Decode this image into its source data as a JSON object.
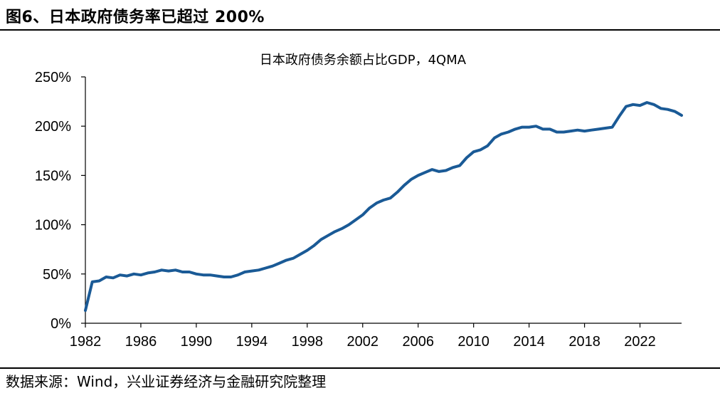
{
  "figure": {
    "title": "图6、日本政府债务率已超过 200%",
    "source": "数据来源：Wind，兴业证券经济与金融研究院整理"
  },
  "colors": {
    "line": "#1a5a96",
    "axis": "#000000"
  },
  "chart_data": {
    "type": "line",
    "title": "日本政府债务余额占比GDP，4QMA",
    "xlabel": "",
    "ylabel": "",
    "xlim": [
      1982,
      2025
    ],
    "ylim": [
      0,
      250
    ],
    "y_ticks": [
      0,
      50,
      100,
      150,
      200,
      250
    ],
    "y_tick_labels": [
      "0%",
      "50%",
      "100%",
      "150%",
      "200%",
      "250%"
    ],
    "x_ticks": [
      1982,
      1986,
      1990,
      1994,
      1998,
      2002,
      2006,
      2010,
      2014,
      2018,
      2022
    ],
    "x_tick_labels": [
      "1982",
      "1986",
      "1990",
      "1994",
      "1998",
      "2002",
      "2006",
      "2010",
      "2014",
      "2018",
      "2022"
    ],
    "grid": false,
    "legend": "none",
    "series": [
      {
        "x": [
          1982.0,
          1982.5,
          1983.0,
          1983.5,
          1984.0,
          1984.5,
          1985.0,
          1985.5,
          1986.0,
          1986.5,
          1987.0,
          1987.5,
          1988.0,
          1988.5,
          1989.0,
          1989.5,
          1990.0,
          1990.5,
          1991.0,
          1991.5,
          1992.0,
          1992.5,
          1993.0,
          1993.5,
          1994.0,
          1994.5,
          1995.0,
          1995.5,
          1996.0,
          1996.5,
          1997.0,
          1997.5,
          1998.0,
          1998.5,
          1999.0,
          1999.5,
          2000.0,
          2000.5,
          2001.0,
          2001.5,
          2002.0,
          2002.5,
          2003.0,
          2003.5,
          2004.0,
          2004.5,
          2005.0,
          2005.5,
          2006.0,
          2006.5,
          2007.0,
          2007.5,
          2008.0,
          2008.5,
          2009.0,
          2009.5,
          2010.0,
          2010.5,
          2011.0,
          2011.5,
          2012.0,
          2012.5,
          2013.0,
          2013.5,
          2014.0,
          2014.5,
          2015.0,
          2015.5,
          2016.0,
          2016.5,
          2017.0,
          2017.5,
          2018.0,
          2018.5,
          2019.0,
          2019.5,
          2020.0,
          2020.5,
          2021.0,
          2021.5,
          2022.0,
          2022.5,
          2023.0,
          2023.5,
          2024.0,
          2024.5,
          2025.0
        ],
        "y": [
          13,
          42,
          43,
          47,
          46,
          49,
          48,
          50,
          49,
          51,
          52,
          54,
          53,
          54,
          52,
          52,
          50,
          49,
          49,
          48,
          47,
          47,
          49,
          52,
          53,
          54,
          56,
          58,
          61,
          64,
          66,
          70,
          74,
          79,
          85,
          89,
          93,
          96,
          100,
          105,
          110,
          117,
          122,
          125,
          127,
          133,
          140,
          146,
          150,
          153,
          156,
          154,
          155,
          158,
          160,
          168,
          174,
          176,
          180,
          188,
          192,
          194,
          197,
          199,
          199,
          200,
          197,
          197,
          194,
          194,
          195,
          196,
          195,
          196,
          197,
          198,
          199,
          210,
          220,
          222,
          221,
          224,
          222,
          218,
          217,
          215,
          211
        ]
      }
    ]
  }
}
